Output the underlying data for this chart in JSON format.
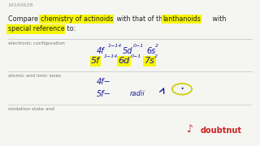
{
  "bg_color": "#e8e8e4",
  "content_bg": "#f5f5f2",
  "id_text": "14160628",
  "highlight_color": "#f7f700",
  "text_color": "#222222",
  "label_color": "#777777",
  "hw_color": "#1a1a9a",
  "divider_color": "#cccccc",
  "row1_label": "electronic configuration",
  "row2_label": "atomic and ionic sizes",
  "row3_label": "oxidation state and",
  "fs_main": 6.0,
  "fs_label": 4.2,
  "fs_id": 4.5,
  "fs_question": 5.8,
  "fs_sup": 4.0,
  "fs_hw": 7.0,
  "fs_hw_sup": 4.5
}
